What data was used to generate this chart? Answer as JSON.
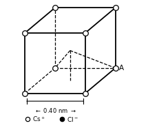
{
  "bg_color": "#ffffff",
  "line_color": "#000000",
  "lw_solid": 1.3,
  "lw_dashed": 0.9,
  "cs_marker_size": 5.5,
  "cl_marker_size": 4.0,
  "label_A": "A",
  "dim_text": "→0.40 nm →←",
  "legend_cs": "Cs⁺",
  "legend_cl": "Cl⁻",
  "s": 1.0,
  "ox": 0.5,
  "oy": 0.42
}
